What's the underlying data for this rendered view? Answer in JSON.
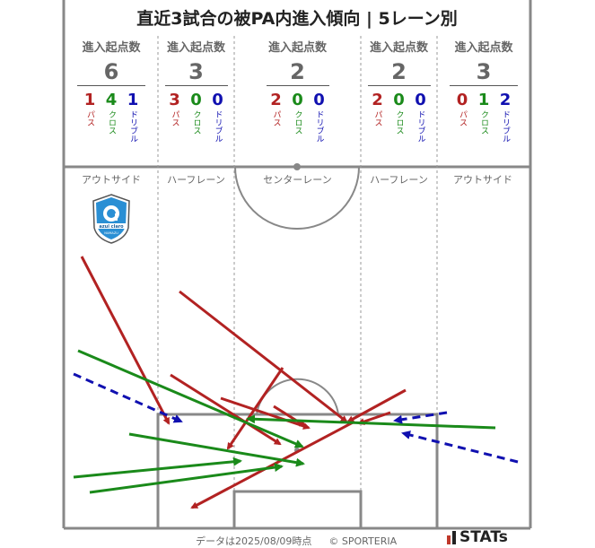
{
  "title": "直近3試合の被PA内進入傾向 | 5レーン別",
  "lanes": [
    {
      "label": "進入起点数",
      "total": "6",
      "pass": "1",
      "cross": "4",
      "dribble": "1",
      "zone": "アウトサイド"
    },
    {
      "label": "進入起点数",
      "total": "3",
      "pass": "3",
      "cross": "0",
      "dribble": "0",
      "zone": "ハーフレーン"
    },
    {
      "label": "進入起点数",
      "total": "2",
      "pass": "2",
      "cross": "0",
      "dribble": "0",
      "zone": "センターレーン"
    },
    {
      "label": "進入起点数",
      "total": "2",
      "pass": "2",
      "cross": "0",
      "dribble": "0",
      "zone": "ハーフレーン"
    },
    {
      "label": "進入起点数",
      "total": "3",
      "pass": "0",
      "cross": "1",
      "dribble": "2",
      "zone": "アウトサイド"
    }
  ],
  "legend": {
    "pass": "パス",
    "cross": "クロス",
    "dribble": "ドリブル"
  },
  "colors": {
    "pass": "#b22222",
    "cross": "#1a8a1a",
    "dribble": "#1010b0",
    "line": "#888888"
  },
  "team_logo": {
    "text": "azul claro",
    "sub": "NUMAZU"
  },
  "footer": {
    "note": "データは2025/08/09時点",
    "credit": "© SPORTERIA"
  },
  "brand": "STATs"
}
